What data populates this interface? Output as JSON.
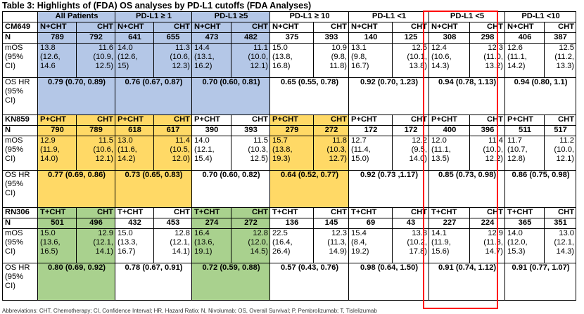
{
  "title": "Table 3: Highlights of (FDA) OS analyses by PD-L1 cutoffs (FDA Analyses)",
  "columns": [
    "All Patients",
    "PD-L1 ≥ 1",
    "PD-L1 ≥5",
    "PD-L1 ≥ 10",
    "PD-L1 <1",
    "PD-L1 <5",
    "PD-L1 <10"
  ],
  "row_labels": {
    "n": "N",
    "mos": "mOS\n(95%\nCI)",
    "hr": "OS HR\n(95%\nCI)"
  },
  "trials": [
    {
      "name": "CM649",
      "arms": [
        "N+CHT",
        "CHT",
        "N+CHT",
        "CHT",
        "N+CHT",
        "CHT",
        "N+CHT",
        "CHT",
        "N+CHT",
        "CHT",
        "N+CHT",
        "CHT",
        "N+CHT",
        "CHT"
      ],
      "n": [
        "789",
        "792",
        "641",
        "655",
        "473",
        "482",
        "375",
        "393",
        "140",
        "125",
        "308",
        "298",
        "406",
        "387"
      ],
      "mos": [
        "13.8\n(12.6,\n14.6",
        "11.6\n(10.9,\n12.5)",
        "14.0\n(12.6,\n15)",
        "11.3\n(10.6,\n12.3)",
        "14.4\n(13.1,\n16.2)",
        "11.1\n(10.0,\n12.1)",
        "15.0\n(13.8,\n16.8)",
        "10.9\n(9.8,\n11.8)",
        "13.1\n(9.8,\n16.7)",
        "12.5\n(10.1,\n13.8)",
        "12.4\n(10.6,\n14.3)",
        "12.3\n(11.0,\n13.2)",
        "12.6\n(11.1,\n14.2)",
        "12.5\n(11.2,\n13.3)"
      ],
      "hr": [
        "0.79 (0.70, 0.89)",
        "0.76 (0.67, 0.87)",
        "0.70 (0.60, 0.81)",
        "0.65 (0.55, 0.78)",
        "0.92 (0.70, 1.23)",
        "0.94 (0.78, 1.13)",
        "0.94 (0.80, 1.1)"
      ]
    },
    {
      "name": "KN859",
      "arms": [
        "P+CHT",
        "CHT",
        "P+CHT",
        "CHT",
        "P+CHT",
        "CHT",
        "P+CHT",
        "CHT",
        "P+CHT",
        "CHT",
        "P+CHT",
        "CHT",
        "P+CHT",
        "CHT"
      ],
      "n": [
        "790",
        "789",
        "618",
        "617",
        "390",
        "393",
        "279",
        "272",
        "172",
        "172",
        "400",
        "396",
        "511",
        "517"
      ],
      "mos": [
        "12.9\n(11.9,\n14.0)",
        "11.5\n(10.6,\n12.1)",
        "13.0\n(11.6,\n14.2)",
        "11.4\n(10.5,\n12.0)",
        "14.0\n(12.1,\n15.4)",
        "11.5\n(10.3,\n12.5)",
        "15.7\n(13.8,\n19.3)",
        "11.8\n(10.3,\n12.7)",
        "12.7\n(11.4,\n15.0)",
        "12.2\n(9.5,\n14.0)",
        "12.0\n(11.1,\n13.5)",
        "11.4\n(10.0,\n12.2)",
        "11.7\n(10.7,\n12.8)",
        "11.2\n(10.0,\n12.1)"
      ],
      "hr": [
        "0.77 (0.69, 0.86)",
        "0.73 (0.65, 0.83)",
        "0.70 (0.60, 0.82)",
        "0.64 (0.52, 0.77)",
        "0.92 (0.73 ,1.17)",
        "0.85 (0.73, 0.98)",
        "0.86 (0.75, 0.98)"
      ]
    },
    {
      "name": "RN306",
      "arms": [
        "T+CHT",
        "CHT",
        "T+CHT",
        "CHT",
        "T+CHT",
        "CHT",
        "T+CHT",
        "CHT",
        "T+CHT",
        "CHT",
        "T+CHT",
        "CHT",
        "T+CHT",
        "CHT"
      ],
      "n": [
        "501",
        "496",
        "432",
        "453",
        "274",
        "272",
        "136",
        "145",
        "69",
        "43",
        "227",
        "224",
        "365",
        "351"
      ],
      "mos": [
        "15.0\n(13.6,\n16.5)",
        "12.9\n(12.1,\n14.1)",
        "15.0\n(13.3,\n16.7)",
        "12.8\n(12.1,\n14.1)",
        "16.4\n(13.6,\n19.1)",
        "12.8\n(12.0,\n14.5)",
        "22.5\n(16.4,\n26.4)",
        "12.3\n(11.3,\n14.9)",
        "15.4\n(8.4,\n19.2)",
        "13.8\n(10.2,\n17.8)",
        "14.1\n(11.9,\n15.6)",
        "12.9\n(11.3,\n14.7)",
        "14.0\n(12.0,\n15.3)",
        "13.0\n(12.1,\n14.3)"
      ],
      "hr": [
        "0.80 (0.69, 0.92)",
        "0.78 (0.67, 0.91)",
        "0.72 (0.59, 0.88)",
        "0.57 (0.43, 0.76)",
        "0.98 (0.64, 1.50)",
        "0.91 (0.74, 1.12)",
        "0.91 (0.77, 1.07)"
      ]
    }
  ],
  "footer": "Abbreviations: CHT, Chemotherapy; CI, Confidence Interval; HR, Hazard Ratio; N, Nivolumab; OS, Overall Survival; P, Pembrolizumab; T, Tislelizumab",
  "colors": {
    "blue": "#b4c7e7",
    "yellow": "#ffd966",
    "green": "#a9d18e",
    "highlight_box": "#ff0000"
  }
}
